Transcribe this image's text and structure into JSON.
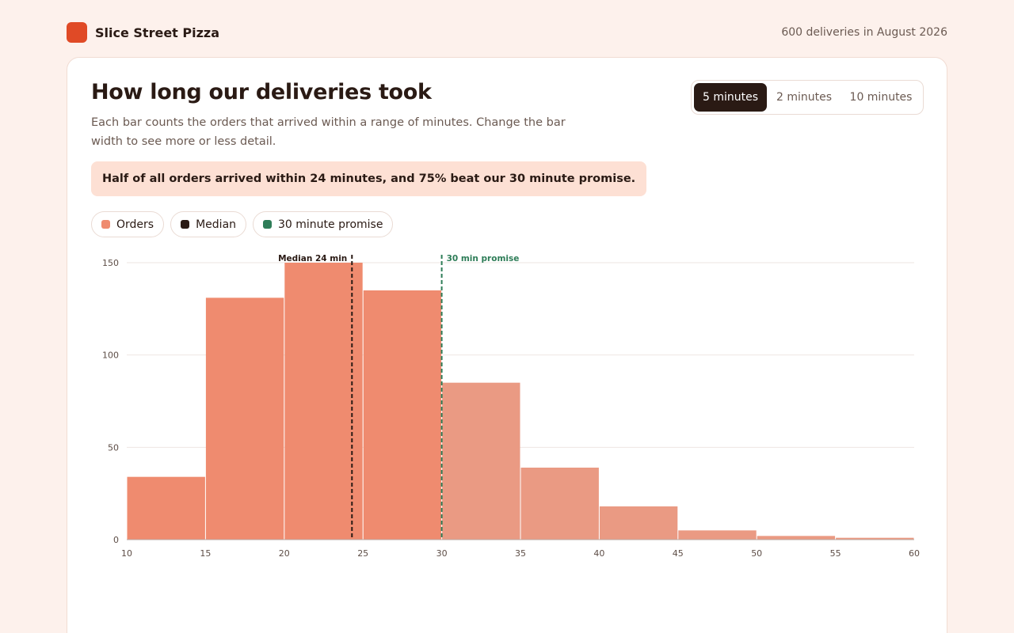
{
  "header": {
    "brand_name": "Slice Street Pizza",
    "summary": "600 deliveries in August 2026"
  },
  "card": {
    "title": "How long our deliveries took",
    "subtitle": "Each bar counts the orders that arrived within a range of minutes. Change the bar width to see more or less detail.",
    "callout": "Half of all orders arrived within 24 minutes, and 75% beat our 30 minute promise."
  },
  "bin_width_options": [
    {
      "label": "5 minutes",
      "selected": true
    },
    {
      "label": "2 minutes",
      "selected": false
    },
    {
      "label": "10 minutes",
      "selected": false
    }
  ],
  "legend": [
    {
      "label": "Orders",
      "color": "#ef8b6f"
    },
    {
      "label": "Median",
      "color": "#2a1a14"
    },
    {
      "label": "30 minute promise",
      "color": "#2e7d58"
    }
  ],
  "colors": {
    "bar": "#ef8b6f",
    "bar_after_promise": "#ea9a83",
    "median_line": "#2a1a14",
    "promise_line": "#2e7d58",
    "brand": "#e04a26"
  },
  "chart_data": {
    "type": "bar",
    "title": "How long our deliveries took",
    "xlabel": "",
    "ylabel": "",
    "bins": [
      {
        "start": 10,
        "end": 15,
        "count": 34
      },
      {
        "start": 15,
        "end": 20,
        "count": 131
      },
      {
        "start": 20,
        "end": 25,
        "count": 150
      },
      {
        "start": 25,
        "end": 30,
        "count": 135
      },
      {
        "start": 30,
        "end": 35,
        "count": 85
      },
      {
        "start": 35,
        "end": 40,
        "count": 39
      },
      {
        "start": 40,
        "end": 45,
        "count": 18
      },
      {
        "start": 45,
        "end": 50,
        "count": 5
      },
      {
        "start": 50,
        "end": 55,
        "count": 2
      },
      {
        "start": 55,
        "end": 60,
        "count": 1
      }
    ],
    "xlim": [
      10,
      60
    ],
    "ylim": [
      0,
      150
    ],
    "x_ticks": [
      10,
      15,
      20,
      25,
      30,
      35,
      40,
      45,
      50,
      55,
      60
    ],
    "y_ticks": [
      0,
      50,
      100,
      150
    ],
    "grid": true,
    "reference_lines": [
      {
        "name": "median",
        "value": 24.3,
        "label": "Median 24 min"
      },
      {
        "name": "promise",
        "value": 30,
        "label": "30 min promise"
      }
    ]
  }
}
